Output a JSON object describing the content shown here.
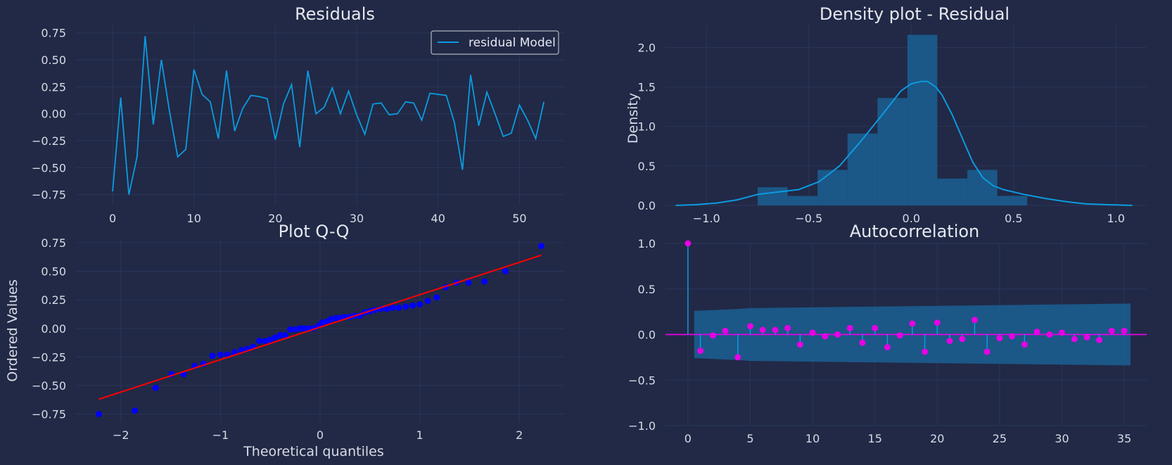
{
  "chart_data": [
    {
      "id": "residuals",
      "type": "line",
      "title": "Residuals",
      "xlabel": "",
      "ylabel": "",
      "xlim": [
        -4.5,
        55.5
      ],
      "ylim": [
        -0.85,
        0.82
      ],
      "xticks": [
        0,
        10,
        20,
        30,
        40,
        50
      ],
      "xtick_labels": [
        "0",
        "10",
        "20",
        "30",
        "40",
        "50"
      ],
      "yticks": [
        -0.75,
        -0.5,
        -0.25,
        0,
        0.25,
        0.5,
        0.75
      ],
      "ytick_labels": [
        "−0.75",
        "−0.50",
        "−0.25",
        "0.00",
        "0.25",
        "0.50",
        "0.75"
      ],
      "legend": {
        "label": "residual Model",
        "position": "top-right"
      },
      "series": [
        {
          "name": "residual Model",
          "color": "#0c9be0",
          "values": [
            -0.72,
            0.15,
            -0.75,
            -0.4,
            0.72,
            -0.1,
            0.5,
            0.02,
            -0.4,
            -0.33,
            0.41,
            0.18,
            0.11,
            -0.23,
            0.4,
            -0.16,
            0.05,
            0.17,
            0.16,
            0.14,
            -0.24,
            0.09,
            0.27,
            -0.31,
            0.4,
            0.0,
            0.06,
            0.24,
            0.0,
            0.21,
            -0.01,
            -0.19,
            0.09,
            0.1,
            -0.01,
            0.0,
            0.11,
            0.1,
            -0.06,
            0.19,
            0.18,
            0.17,
            -0.08,
            -0.52,
            0.36,
            -0.11,
            0.2,
            0.0,
            -0.21,
            -0.18,
            0.08,
            -0.06,
            -0.23,
            0.11
          ]
        }
      ]
    },
    {
      "id": "density",
      "type": "area",
      "title": "Density plot - Residual",
      "xlabel": "",
      "ylabel": "Density",
      "xlim": [
        -1.2,
        1.15
      ],
      "ylim": [
        0,
        2.28
      ],
      "xticks": [
        -1.0,
        -0.5,
        0,
        0.5,
        1.0
      ],
      "xtick_labels": [
        "−1.0",
        "−0.5",
        "0.0",
        "0.5",
        "1.0"
      ],
      "yticks": [
        0,
        0.5,
        1.0,
        1.5,
        2.0
      ],
      "ytick_labels": [
        "0.0",
        "0.5",
        "1.0",
        "1.5",
        "2.0"
      ],
      "histogram": {
        "bin_edges": [
          -0.75,
          -0.6037,
          -0.4574,
          -0.3111,
          -0.1648,
          -0.0185,
          0.1278,
          0.2741,
          0.4204,
          0.5667,
          0.713
        ],
        "densities": [
          0.23,
          0.12,
          0.45,
          0.91,
          1.36,
          2.16,
          0.34,
          0.45,
          0.12,
          0.0
        ],
        "color": "#1a5f93"
      },
      "kde": {
        "x": [
          -1.15,
          -1.05,
          -0.95,
          -0.85,
          -0.75,
          -0.65,
          -0.55,
          -0.45,
          -0.35,
          -0.25,
          -0.15,
          -0.05,
          0.0,
          0.05,
          0.08,
          0.12,
          0.15,
          0.2,
          0.25,
          0.3,
          0.35,
          0.4,
          0.45,
          0.55,
          0.65,
          0.75,
          0.85,
          0.95,
          1.08
        ],
        "y": [
          0.0,
          0.01,
          0.03,
          0.07,
          0.14,
          0.17,
          0.2,
          0.3,
          0.5,
          0.8,
          1.12,
          1.45,
          1.54,
          1.57,
          1.57,
          1.5,
          1.4,
          1.15,
          0.85,
          0.55,
          0.35,
          0.25,
          0.2,
          0.14,
          0.09,
          0.05,
          0.02,
          0.01,
          0.0
        ],
        "color": "#0c9be0"
      }
    },
    {
      "id": "qq",
      "type": "scatter",
      "title": "Plot Q-Q",
      "xlabel": "Theoretical quantiles",
      "ylabel": "Ordered Values",
      "xlim": [
        -2.45,
        2.45
      ],
      "ylim": [
        -0.82,
        0.78
      ],
      "xticks": [
        -2,
        -1,
        0,
        1,
        2
      ],
      "xtick_labels": [
        "−2",
        "−1",
        "0",
        "1",
        "2"
      ],
      "yticks": [
        -0.75,
        -0.5,
        -0.25,
        0,
        0.25,
        0.5,
        0.75
      ],
      "ytick_labels": [
        "−0.75",
        "−0.50",
        "−0.25",
        "0.00",
        "0.25",
        "0.50",
        "0.75"
      ],
      "points": {
        "color": "#0000ff",
        "x": [
          -2.22,
          -1.86,
          -1.65,
          -1.49,
          -1.37,
          -1.26,
          -1.17,
          -1.08,
          -1.0,
          -0.93,
          -0.86,
          -0.79,
          -0.73,
          -0.67,
          -0.61,
          -0.55,
          -0.5,
          -0.45,
          -0.4,
          -0.35,
          -0.3,
          -0.25,
          -0.2,
          -0.16,
          -0.11,
          -0.07,
          -0.02,
          0.02,
          0.07,
          0.11,
          0.16,
          0.2,
          0.25,
          0.3,
          0.35,
          0.4,
          0.45,
          0.5,
          0.55,
          0.61,
          0.67,
          0.73,
          0.79,
          0.86,
          0.93,
          1.0,
          1.08,
          1.17,
          1.26,
          1.37,
          1.49,
          1.65,
          1.86,
          2.22
        ],
        "y": [
          -0.75,
          -0.72,
          -0.52,
          -0.4,
          -0.4,
          -0.33,
          -0.31,
          -0.24,
          -0.23,
          -0.23,
          -0.21,
          -0.19,
          -0.18,
          -0.16,
          -0.11,
          -0.11,
          -0.1,
          -0.08,
          -0.06,
          -0.06,
          -0.01,
          -0.01,
          0.0,
          0.0,
          0.0,
          0.0,
          0.02,
          0.05,
          0.06,
          0.08,
          0.09,
          0.09,
          0.1,
          0.1,
          0.11,
          0.11,
          0.14,
          0.15,
          0.16,
          0.17,
          0.17,
          0.18,
          0.18,
          0.19,
          0.2,
          0.21,
          0.24,
          0.27,
          0.36,
          0.4,
          0.4,
          0.41,
          0.5,
          0.72
        ]
      },
      "fit_line": {
        "x": [
          -2.22,
          2.22
        ],
        "y": [
          -0.62,
          0.64
        ],
        "color": "#ff0000"
      }
    },
    {
      "id": "acf",
      "type": "scatter",
      "title": "Autocorrelation",
      "xlabel": "",
      "ylabel": "",
      "xlim": [
        -1.8,
        36.8
      ],
      "ylim": [
        -1.0,
        1.0
      ],
      "xticks": [
        0,
        5,
        10,
        15,
        20,
        25,
        30,
        35
      ],
      "xtick_labels": [
        "0",
        "5",
        "10",
        "15",
        "20",
        "25",
        "30",
        "35"
      ],
      "yticks": [
        -1.0,
        -0.5,
        0,
        0.5,
        1.0
      ],
      "ytick_labels": [
        "−1.0",
        "−0.5",
        "0.0",
        "0.5",
        "1.0"
      ],
      "lags": [
        0,
        1,
        2,
        3,
        4,
        5,
        6,
        7,
        8,
        9,
        10,
        11,
        12,
        13,
        14,
        15,
        16,
        17,
        18,
        19,
        20,
        21,
        22,
        23,
        24,
        25,
        26,
        27,
        28,
        29,
        30,
        31,
        32,
        33,
        34,
        35
      ],
      "values": [
        1.0,
        -0.18,
        -0.01,
        0.04,
        -0.25,
        0.09,
        0.05,
        0.05,
        0.07,
        -0.11,
        0.02,
        -0.02,
        0.0,
        0.07,
        -0.09,
        0.07,
        -0.14,
        -0.01,
        0.12,
        -0.19,
        0.13,
        -0.07,
        -0.05,
        0.16,
        -0.19,
        -0.04,
        -0.02,
        -0.11,
        0.03,
        0.0,
        0.02,
        -0.05,
        -0.03,
        -0.06,
        0.04,
        0.04
      ],
      "confidence": {
        "lags": [
          0.5,
          4,
          5,
          35.5
        ],
        "upper": [
          0.26,
          0.28,
          0.29,
          0.34
        ],
        "lower": [
          -0.26,
          -0.28,
          -0.29,
          -0.34
        ],
        "color": "#1a5f93"
      },
      "stem_color": "#0c9be0",
      "marker_color": "#e600e6",
      "zero_line_color": "#e600e6"
    }
  ]
}
